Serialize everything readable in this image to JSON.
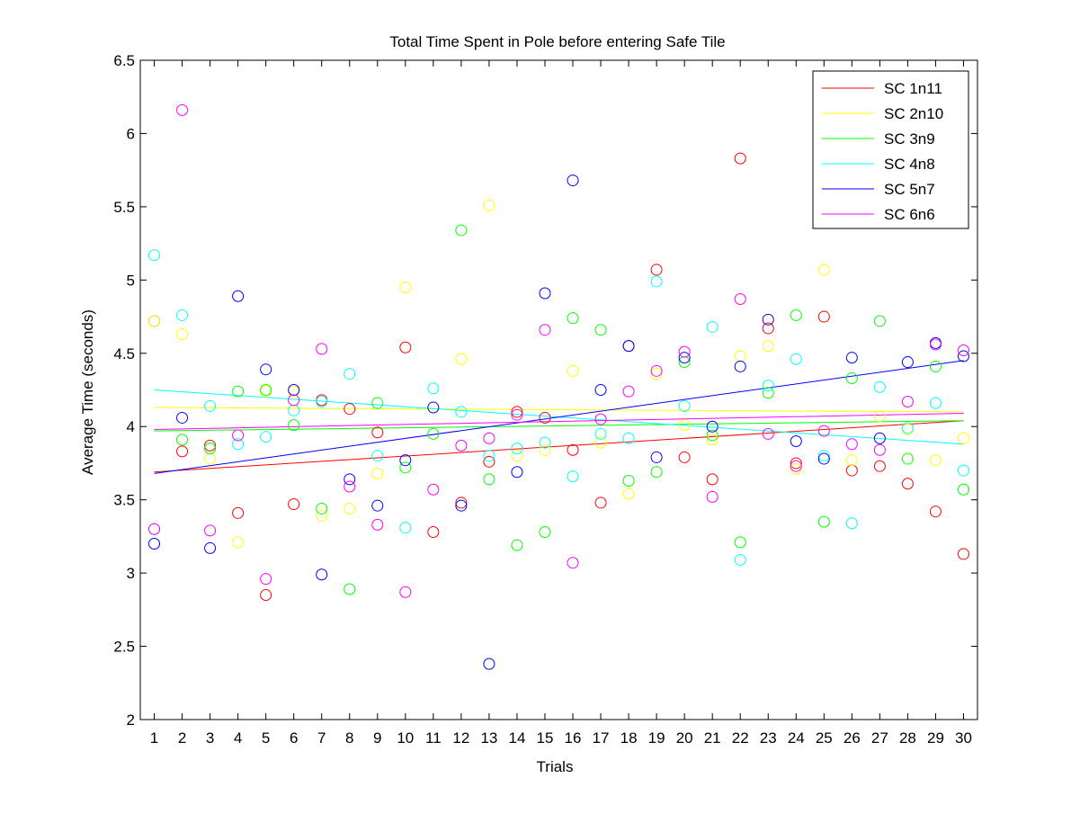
{
  "chart_data": {
    "type": "scatter",
    "title": "Total Time Spent in Pole before entering Safe Tile",
    "xlabel": "Trials",
    "ylabel": "Average Time (seconds)",
    "xlim": [
      0.5,
      30.5
    ],
    "ylim": [
      2,
      6.5
    ],
    "x": [
      1,
      2,
      3,
      4,
      5,
      6,
      7,
      8,
      9,
      10,
      11,
      12,
      13,
      14,
      15,
      16,
      17,
      18,
      19,
      20,
      21,
      22,
      23,
      24,
      25,
      26,
      27,
      28,
      29,
      30
    ],
    "yticks": [
      "2",
      "2.5",
      "3",
      "3.5",
      "4",
      "4.5",
      "5",
      "5.5",
      "6",
      "6.5"
    ],
    "legend_position": "top-right",
    "series": [
      {
        "name": "SC 1n11",
        "color": "#ff0000",
        "values": [
          4.72,
          3.83,
          3.87,
          3.41,
          2.85,
          3.47,
          4.18,
          4.12,
          3.96,
          4.54,
          3.28,
          3.48,
          3.76,
          4.1,
          4.06,
          3.84,
          3.48,
          4.55,
          5.07,
          3.79,
          3.64,
          5.83,
          4.67,
          3.75,
          4.75,
          3.7,
          3.73,
          3.61,
          3.42,
          3.13
        ],
        "trend": [
          3.69,
          4.04
        ]
      },
      {
        "name": "SC 2n10",
        "color": "#ffff00",
        "values": [
          4.72,
          4.63,
          3.78,
          3.21,
          4.24,
          4.24,
          3.39,
          3.44,
          3.68,
          4.95,
          4.13,
          4.46,
          5.51,
          3.8,
          3.84,
          4.38,
          3.89,
          3.54,
          4.36,
          4.01,
          3.91,
          4.48,
          4.55,
          3.71,
          5.07,
          3.77,
          4.07,
          3.98,
          3.77,
          3.92
        ],
        "trend": [
          4.13,
          4.1
        ]
      },
      {
        "name": "SC 3n9",
        "color": "#00ff00",
        "values": [
          3.3,
          3.91,
          3.85,
          4.24,
          4.25,
          4.01,
          3.44,
          2.89,
          4.16,
          3.72,
          3.95,
          5.34,
          3.64,
          3.19,
          3.28,
          4.74,
          4.66,
          3.63,
          3.69,
          4.44,
          3.94,
          3.21,
          4.23,
          4.76,
          3.35,
          4.33,
          4.72,
          3.78,
          4.41,
          3.57
        ],
        "trend": [
          3.97,
          4.04
        ]
      },
      {
        "name": "SC 4n8",
        "color": "#00ffff",
        "values": [
          5.17,
          4.76,
          4.14,
          3.88,
          3.93,
          4.11,
          4.17,
          4.36,
          3.8,
          3.31,
          4.26,
          4.1,
          3.8,
          3.85,
          3.89,
          3.66,
          3.95,
          3.92,
          4.99,
          4.14,
          4.68,
          3.09,
          4.28,
          4.46,
          3.8,
          3.34,
          4.27,
          3.99,
          4.16,
          3.7
        ],
        "trend": [
          4.25,
          3.88
        ]
      },
      {
        "name": "SC 5n7",
        "color": "#0000ff",
        "values": [
          3.2,
          4.06,
          3.17,
          4.89,
          4.39,
          4.25,
          2.99,
          3.64,
          3.46,
          3.77,
          4.13,
          3.46,
          2.38,
          3.69,
          4.91,
          5.68,
          4.25,
          4.55,
          3.79,
          4.47,
          4.0,
          4.41,
          4.73,
          3.9,
          3.78,
          4.47,
          3.92,
          4.44,
          4.57,
          4.48
        ],
        "trend": [
          3.68,
          4.45
        ]
      },
      {
        "name": "SC 6n6",
        "color": "#ff00ff",
        "values": [
          3.3,
          6.16,
          3.29,
          3.94,
          2.96,
          4.18,
          4.53,
          3.59,
          3.33,
          2.87,
          3.57,
          3.87,
          3.92,
          4.08,
          4.66,
          3.07,
          4.05,
          4.24,
          4.38,
          4.51,
          3.52,
          4.87,
          3.95,
          3.73,
          3.97,
          3.88,
          3.84,
          4.17,
          4.56,
          4.52
        ],
        "trend": [
          3.98,
          4.09
        ]
      }
    ]
  }
}
